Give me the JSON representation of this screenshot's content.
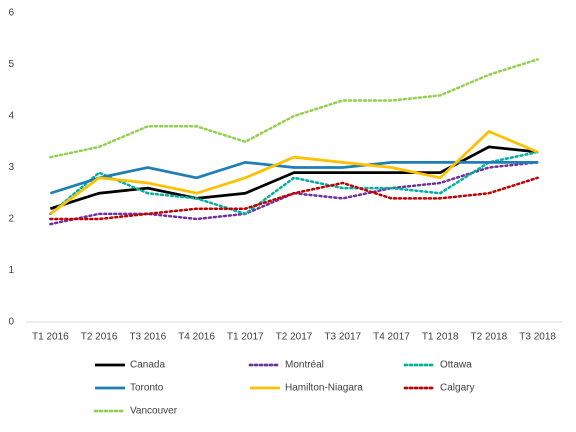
{
  "chart_data": {
    "type": "line",
    "categories": [
      "T1 2016",
      "T2 2016",
      "T3 2016",
      "T4 2016",
      "T1 2017",
      "T2 2017",
      "T3 2017",
      "T4 2017",
      "T1 2018",
      "T2 2018",
      "T3 2018"
    ],
    "ylim": [
      0,
      6
    ],
    "yticks": [
      0,
      1,
      2,
      3,
      4,
      5,
      6
    ],
    "grid": false,
    "series": [
      {
        "name": "Canada",
        "color": "#000000",
        "style": "solid",
        "values": [
          2.2,
          2.5,
          2.6,
          2.4,
          2.5,
          2.9,
          2.9,
          2.9,
          2.9,
          3.4,
          3.3
        ]
      },
      {
        "name": "Montréal",
        "color": "#7030a0",
        "style": "dotted",
        "values": [
          1.9,
          2.1,
          2.1,
          2.0,
          2.1,
          2.5,
          2.4,
          2.6,
          2.7,
          3.0,
          3.1
        ]
      },
      {
        "name": "Ottawa",
        "color": "#00b0a0",
        "style": "dotted",
        "values": [
          2.1,
          2.9,
          2.5,
          2.4,
          2.1,
          2.8,
          2.6,
          2.6,
          2.5,
          3.1,
          3.3
        ]
      },
      {
        "name": "Toronto",
        "color": "#1f7fb4",
        "style": "solid",
        "values": [
          2.5,
          2.8,
          3.0,
          2.8,
          3.1,
          3.0,
          3.0,
          3.1,
          3.1,
          3.1,
          3.1
        ]
      },
      {
        "name": "Hamilton-Niagara",
        "color": "#ffc000",
        "style": "solid",
        "values": [
          2.1,
          2.8,
          2.7,
          2.5,
          2.8,
          3.2,
          3.1,
          3.0,
          2.8,
          3.7,
          3.3
        ]
      },
      {
        "name": "Calgary",
        "color": "#c00000",
        "style": "dotted",
        "values": [
          2.0,
          2.0,
          2.1,
          2.2,
          2.2,
          2.5,
          2.7,
          2.4,
          2.4,
          2.5,
          2.8
        ]
      },
      {
        "name": "Vancouver",
        "color": "#92d050",
        "style": "dotted",
        "values": [
          3.2,
          3.4,
          3.8,
          3.8,
          3.5,
          4.0,
          4.3,
          4.3,
          4.4,
          4.8,
          5.1
        ]
      }
    ]
  }
}
